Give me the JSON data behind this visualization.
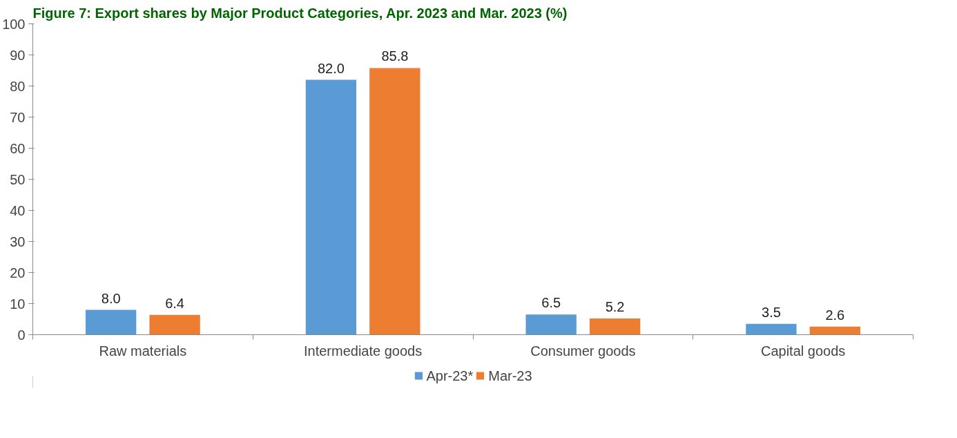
{
  "chart_data": {
    "type": "bar",
    "title": "Figure 7: Export shares by Major Product Categories, Apr. 2023 and Mar. 2023 (%)",
    "categories": [
      "Raw materials",
      "Intermediate goods",
      "Consumer goods",
      "Capital goods"
    ],
    "series": [
      {
        "name": "Apr-23*",
        "color": "#5b9bd5",
        "values": [
          8.0,
          82.0,
          6.5,
          3.5
        ],
        "value_labels": [
          "8.0",
          "82.0",
          "6.5",
          "3.5"
        ]
      },
      {
        "name": "Mar-23",
        "color": "#ed7d31",
        "values": [
          6.4,
          85.8,
          5.2,
          2.6
        ],
        "value_labels": [
          "6.4",
          "85.8",
          "5.2",
          "2.6"
        ]
      }
    ],
    "ylim": [
      0,
      100
    ],
    "yticks": [
      0,
      10,
      20,
      30,
      40,
      50,
      60,
      70,
      80,
      90,
      100
    ],
    "grid": false,
    "legend": "bottom"
  }
}
